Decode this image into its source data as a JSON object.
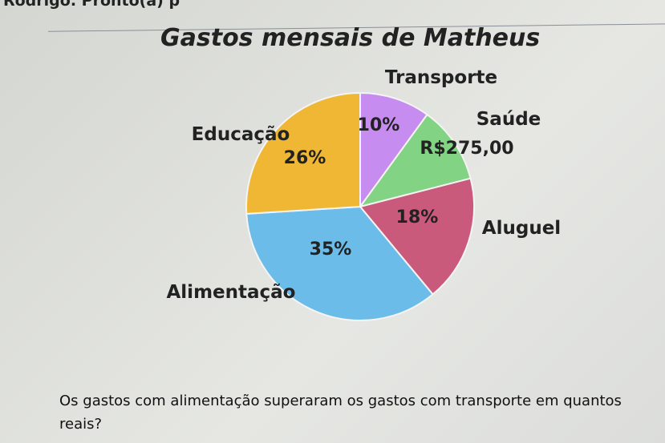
{
  "header_text": "Rodrigo. Pronto(a) p",
  "chart_data": {
    "type": "pie",
    "title": "Gastos mensais de Matheus",
    "slices": [
      {
        "name": "Transporte",
        "label": "10%",
        "value": 10,
        "color": "#c68cf0"
      },
      {
        "name": "Saúde",
        "label": "R$275,00",
        "value": 11,
        "color": "#82d383"
      },
      {
        "name": "Aluguel",
        "label": "18%",
        "value": 18,
        "color": "#c95a7c"
      },
      {
        "name": "Alimentação",
        "label": "35%",
        "value": 35,
        "color": "#6cbcea"
      },
      {
        "name": "Educação",
        "label": "26%",
        "value": 26,
        "color": "#efb733"
      }
    ]
  },
  "question": "Os gastos com alimentação superaram os gastos com transporte em quantos reais?"
}
